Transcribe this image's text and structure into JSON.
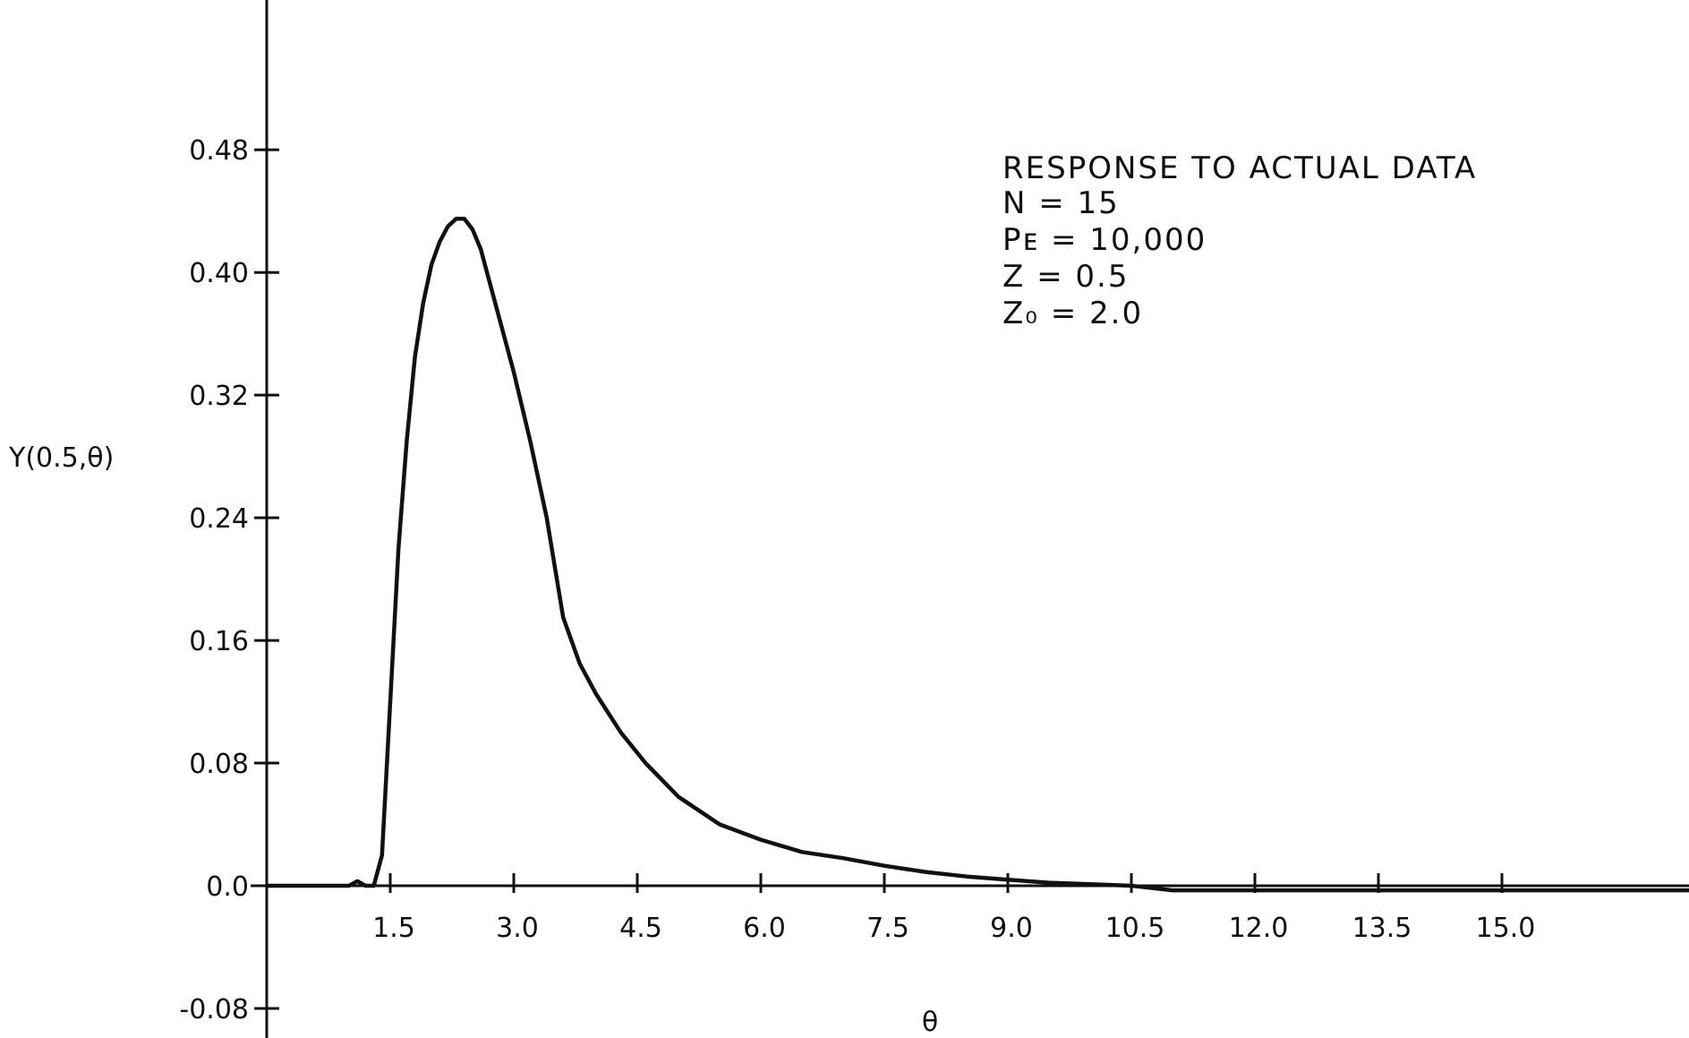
{
  "chart_data": {
    "type": "line",
    "title": "",
    "xlabel": "θ",
    "ylabel": "Y(0.5,θ)",
    "xlim": [
      0,
      18.6
    ],
    "ylim": [
      -0.1,
      0.58
    ],
    "x_ticks": [
      1.5,
      3.0,
      4.5,
      6.0,
      7.5,
      9.0,
      10.5,
      12.0,
      13.5,
      15.0
    ],
    "x_tick_labels": [
      "1.5",
      "3.0",
      "4.5",
      "6.0",
      "7.5",
      "9.0",
      "10.5",
      "12.0",
      "13.5",
      "15.0"
    ],
    "y_ticks": [
      0.48,
      0.4,
      0.32,
      0.24,
      0.16,
      0.08,
      0.0,
      -0.08
    ],
    "y_tick_labels": [
      "0.48",
      "0.40",
      "0.32",
      "0.24",
      "0.16",
      "0.08",
      "0.0",
      "-0.08"
    ],
    "grid": false,
    "annotations": [
      "RESPONSE TO ACTUAL DATA",
      "N = 15",
      "Pᴇ = 10,000",
      "Z = 0.5",
      "Z₀ = 2.0"
    ],
    "series": [
      {
        "x": [
          0.0,
          0.5,
          1.0,
          1.1,
          1.2,
          1.3,
          1.4,
          1.5,
          1.6,
          1.7,
          1.8,
          1.9,
          2.0,
          2.1,
          2.2,
          2.3,
          2.4,
          2.5,
          2.6,
          2.7,
          2.8,
          2.9,
          3.0,
          3.2,
          3.4,
          3.6,
          3.8,
          4.0,
          4.3,
          4.6,
          5.0,
          5.5,
          6.0,
          6.5,
          7.0,
          7.5,
          8.0,
          8.5,
          9.0,
          9.5,
          10.0,
          10.5,
          11.0,
          12.0,
          13.0,
          14.0,
          15.0,
          16.0,
          17.0,
          18.0,
          18.6
        ],
        "y": [
          0.0,
          0.0,
          0.0,
          0.003,
          0.0,
          0.0,
          0.02,
          0.12,
          0.22,
          0.29,
          0.345,
          0.38,
          0.405,
          0.42,
          0.43,
          0.435,
          0.435,
          0.428,
          0.415,
          0.395,
          0.375,
          0.355,
          0.335,
          0.29,
          0.24,
          0.175,
          0.145,
          0.125,
          0.1,
          0.08,
          0.058,
          0.04,
          0.03,
          0.022,
          0.018,
          0.013,
          0.009,
          0.006,
          0.004,
          0.002,
          0.001,
          0.0,
          -0.003,
          -0.003,
          -0.003,
          -0.003,
          -0.003,
          -0.003,
          -0.003,
          -0.003,
          -0.003
        ]
      }
    ]
  }
}
